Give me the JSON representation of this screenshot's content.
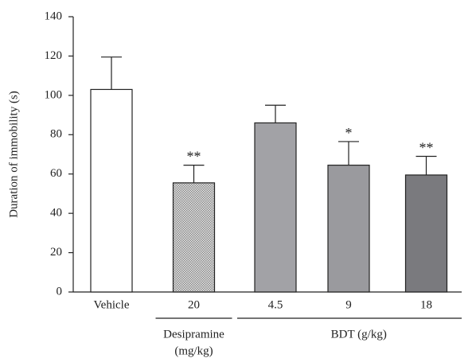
{
  "chart_data": {
    "type": "bar",
    "y_label": "Duration of immobility (s)",
    "categories": [
      "Vehicle",
      "20",
      "4.5",
      "9",
      "18"
    ],
    "values": [
      103,
      55.5,
      86,
      64.5,
      59.5
    ],
    "errors": [
      16.5,
      9,
      9,
      12,
      9.5
    ],
    "annotations": [
      null,
      "**",
      null,
      "*",
      "**"
    ],
    "colors": [
      "#ffffff",
      "hatch",
      "#a2a2a6",
      "#9a9a9e",
      "#7a7a7e"
    ],
    "groups": [
      {
        "label": [
          "Desipramine",
          "(mg/kg)"
        ],
        "categories": [
          1
        ]
      },
      {
        "label": [
          "BDT (g/kg)"
        ],
        "categories": [
          2,
          3,
          4
        ]
      }
    ],
    "ylim": [
      0,
      140
    ],
    "yticks": [
      0,
      20,
      40,
      60,
      80,
      100,
      120,
      140
    ]
  }
}
